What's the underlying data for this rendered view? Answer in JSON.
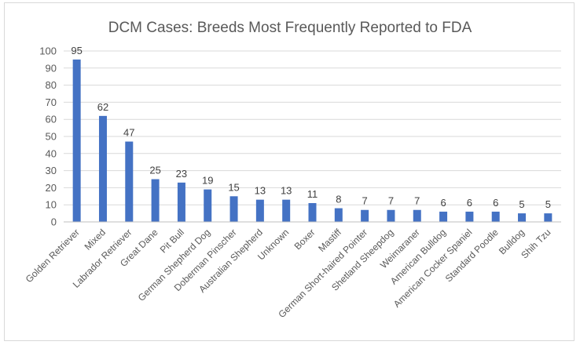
{
  "chart_data": {
    "type": "bar",
    "title": "DCM Cases: Breeds Most Frequently Reported to FDA",
    "xlabel": "",
    "ylabel": "",
    "ylim": [
      0,
      100
    ],
    "yticks": [
      0,
      10,
      20,
      30,
      40,
      50,
      60,
      70,
      80,
      90,
      100
    ],
    "grid": true,
    "legend": "none",
    "bar_color": "#4472c4",
    "categories": [
      "Golden Retriever",
      "Mixed",
      "Labrador Retriever",
      "Great Dane",
      "Pit Bull",
      "German Shepherd Dog",
      "Doberman Pinscher",
      "Australian Shepherd",
      "Unknown",
      "Boxer",
      "Mastiff",
      "German Short-haired Pointer",
      "Shetland Sheepdog",
      "Weimaraner",
      "American Bulldog",
      "American Cocker Spaniel",
      "Standard Poodle",
      "Bulldog",
      "Shih Tzu"
    ],
    "values": [
      95,
      62,
      47,
      25,
      23,
      19,
      15,
      13,
      13,
      11,
      8,
      7,
      7,
      7,
      6,
      6,
      6,
      5,
      5
    ]
  }
}
